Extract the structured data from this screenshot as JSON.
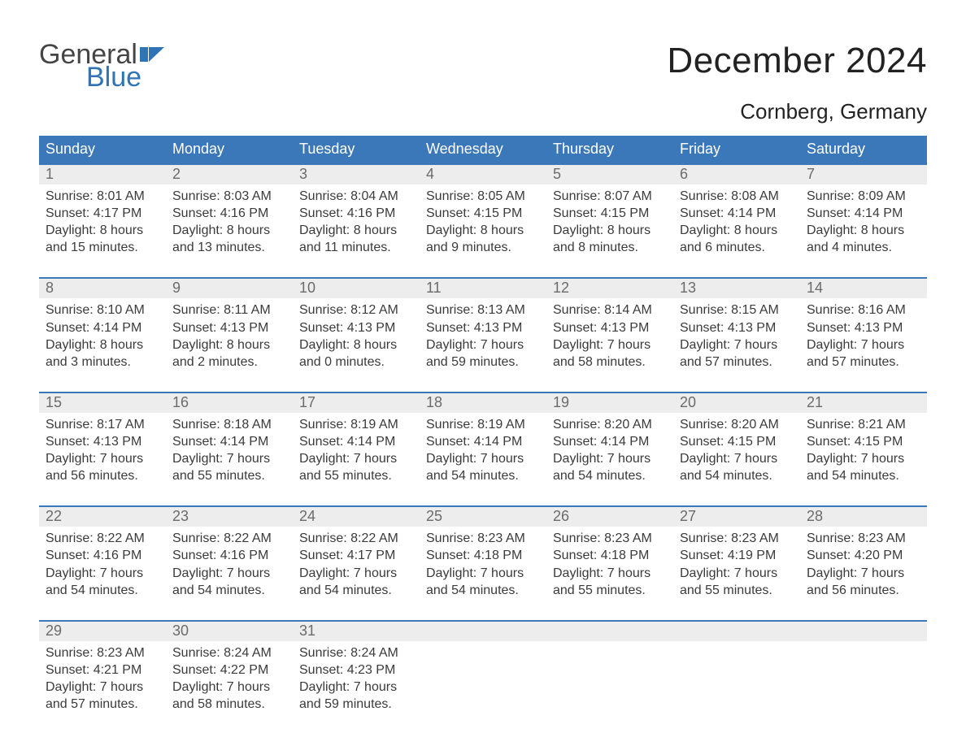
{
  "logo": {
    "word1": "General",
    "word2": "Blue",
    "flag_color": "#2f74b5",
    "text_gray": "#454545"
  },
  "title": "December 2024",
  "location": "Cornberg, Germany",
  "colors": {
    "header_bg": "#3a78b9",
    "header_text": "#ffffff",
    "daynum_bg": "#ededed",
    "daynum_text": "#6b6b6b",
    "body_text": "#3b3b3b",
    "rule": "#3a78b9",
    "page_bg": "#ffffff"
  },
  "typography": {
    "title_fontsize": 44,
    "location_fontsize": 26,
    "header_fontsize": 18,
    "daynum_fontsize": 18,
    "body_fontsize": 16
  },
  "day_headers": [
    "Sunday",
    "Monday",
    "Tuesday",
    "Wednesday",
    "Thursday",
    "Friday",
    "Saturday"
  ],
  "weeks": [
    [
      {
        "n": "1",
        "l1": "Sunrise: 8:01 AM",
        "l2": "Sunset: 4:17 PM",
        "l3": "Daylight: 8 hours",
        "l4": "and 15 minutes."
      },
      {
        "n": "2",
        "l1": "Sunrise: 8:03 AM",
        "l2": "Sunset: 4:16 PM",
        "l3": "Daylight: 8 hours",
        "l4": "and 13 minutes."
      },
      {
        "n": "3",
        "l1": "Sunrise: 8:04 AM",
        "l2": "Sunset: 4:16 PM",
        "l3": "Daylight: 8 hours",
        "l4": "and 11 minutes."
      },
      {
        "n": "4",
        "l1": "Sunrise: 8:05 AM",
        "l2": "Sunset: 4:15 PM",
        "l3": "Daylight: 8 hours",
        "l4": "and 9 minutes."
      },
      {
        "n": "5",
        "l1": "Sunrise: 8:07 AM",
        "l2": "Sunset: 4:15 PM",
        "l3": "Daylight: 8 hours",
        "l4": "and 8 minutes."
      },
      {
        "n": "6",
        "l1": "Sunrise: 8:08 AM",
        "l2": "Sunset: 4:14 PM",
        "l3": "Daylight: 8 hours",
        "l4": "and 6 minutes."
      },
      {
        "n": "7",
        "l1": "Sunrise: 8:09 AM",
        "l2": "Sunset: 4:14 PM",
        "l3": "Daylight: 8 hours",
        "l4": "and 4 minutes."
      }
    ],
    [
      {
        "n": "8",
        "l1": "Sunrise: 8:10 AM",
        "l2": "Sunset: 4:14 PM",
        "l3": "Daylight: 8 hours",
        "l4": "and 3 minutes."
      },
      {
        "n": "9",
        "l1": "Sunrise: 8:11 AM",
        "l2": "Sunset: 4:13 PM",
        "l3": "Daylight: 8 hours",
        "l4": "and 2 minutes."
      },
      {
        "n": "10",
        "l1": "Sunrise: 8:12 AM",
        "l2": "Sunset: 4:13 PM",
        "l3": "Daylight: 8 hours",
        "l4": "and 0 minutes."
      },
      {
        "n": "11",
        "l1": "Sunrise: 8:13 AM",
        "l2": "Sunset: 4:13 PM",
        "l3": "Daylight: 7 hours",
        "l4": "and 59 minutes."
      },
      {
        "n": "12",
        "l1": "Sunrise: 8:14 AM",
        "l2": "Sunset: 4:13 PM",
        "l3": "Daylight: 7 hours",
        "l4": "and 58 minutes."
      },
      {
        "n": "13",
        "l1": "Sunrise: 8:15 AM",
        "l2": "Sunset: 4:13 PM",
        "l3": "Daylight: 7 hours",
        "l4": "and 57 minutes."
      },
      {
        "n": "14",
        "l1": "Sunrise: 8:16 AM",
        "l2": "Sunset: 4:13 PM",
        "l3": "Daylight: 7 hours",
        "l4": "and 57 minutes."
      }
    ],
    [
      {
        "n": "15",
        "l1": "Sunrise: 8:17 AM",
        "l2": "Sunset: 4:13 PM",
        "l3": "Daylight: 7 hours",
        "l4": "and 56 minutes."
      },
      {
        "n": "16",
        "l1": "Sunrise: 8:18 AM",
        "l2": "Sunset: 4:14 PM",
        "l3": "Daylight: 7 hours",
        "l4": "and 55 minutes."
      },
      {
        "n": "17",
        "l1": "Sunrise: 8:19 AM",
        "l2": "Sunset: 4:14 PM",
        "l3": "Daylight: 7 hours",
        "l4": "and 55 minutes."
      },
      {
        "n": "18",
        "l1": "Sunrise: 8:19 AM",
        "l2": "Sunset: 4:14 PM",
        "l3": "Daylight: 7 hours",
        "l4": "and 54 minutes."
      },
      {
        "n": "19",
        "l1": "Sunrise: 8:20 AM",
        "l2": "Sunset: 4:14 PM",
        "l3": "Daylight: 7 hours",
        "l4": "and 54 minutes."
      },
      {
        "n": "20",
        "l1": "Sunrise: 8:20 AM",
        "l2": "Sunset: 4:15 PM",
        "l3": "Daylight: 7 hours",
        "l4": "and 54 minutes."
      },
      {
        "n": "21",
        "l1": "Sunrise: 8:21 AM",
        "l2": "Sunset: 4:15 PM",
        "l3": "Daylight: 7 hours",
        "l4": "and 54 minutes."
      }
    ],
    [
      {
        "n": "22",
        "l1": "Sunrise: 8:22 AM",
        "l2": "Sunset: 4:16 PM",
        "l3": "Daylight: 7 hours",
        "l4": "and 54 minutes."
      },
      {
        "n": "23",
        "l1": "Sunrise: 8:22 AM",
        "l2": "Sunset: 4:16 PM",
        "l3": "Daylight: 7 hours",
        "l4": "and 54 minutes."
      },
      {
        "n": "24",
        "l1": "Sunrise: 8:22 AM",
        "l2": "Sunset: 4:17 PM",
        "l3": "Daylight: 7 hours",
        "l4": "and 54 minutes."
      },
      {
        "n": "25",
        "l1": "Sunrise: 8:23 AM",
        "l2": "Sunset: 4:18 PM",
        "l3": "Daylight: 7 hours",
        "l4": "and 54 minutes."
      },
      {
        "n": "26",
        "l1": "Sunrise: 8:23 AM",
        "l2": "Sunset: 4:18 PM",
        "l3": "Daylight: 7 hours",
        "l4": "and 55 minutes."
      },
      {
        "n": "27",
        "l1": "Sunrise: 8:23 AM",
        "l2": "Sunset: 4:19 PM",
        "l3": "Daylight: 7 hours",
        "l4": "and 55 minutes."
      },
      {
        "n": "28",
        "l1": "Sunrise: 8:23 AM",
        "l2": "Sunset: 4:20 PM",
        "l3": "Daylight: 7 hours",
        "l4": "and 56 minutes."
      }
    ],
    [
      {
        "n": "29",
        "l1": "Sunrise: 8:23 AM",
        "l2": "Sunset: 4:21 PM",
        "l3": "Daylight: 7 hours",
        "l4": "and 57 minutes."
      },
      {
        "n": "30",
        "l1": "Sunrise: 8:24 AM",
        "l2": "Sunset: 4:22 PM",
        "l3": "Daylight: 7 hours",
        "l4": "and 58 minutes."
      },
      {
        "n": "31",
        "l1": "Sunrise: 8:24 AM",
        "l2": "Sunset: 4:23 PM",
        "l3": "Daylight: 7 hours",
        "l4": "and 59 minutes."
      },
      {
        "n": "",
        "l1": "",
        "l2": "",
        "l3": "",
        "l4": ""
      },
      {
        "n": "",
        "l1": "",
        "l2": "",
        "l3": "",
        "l4": ""
      },
      {
        "n": "",
        "l1": "",
        "l2": "",
        "l3": "",
        "l4": ""
      },
      {
        "n": "",
        "l1": "",
        "l2": "",
        "l3": "",
        "l4": ""
      }
    ]
  ]
}
